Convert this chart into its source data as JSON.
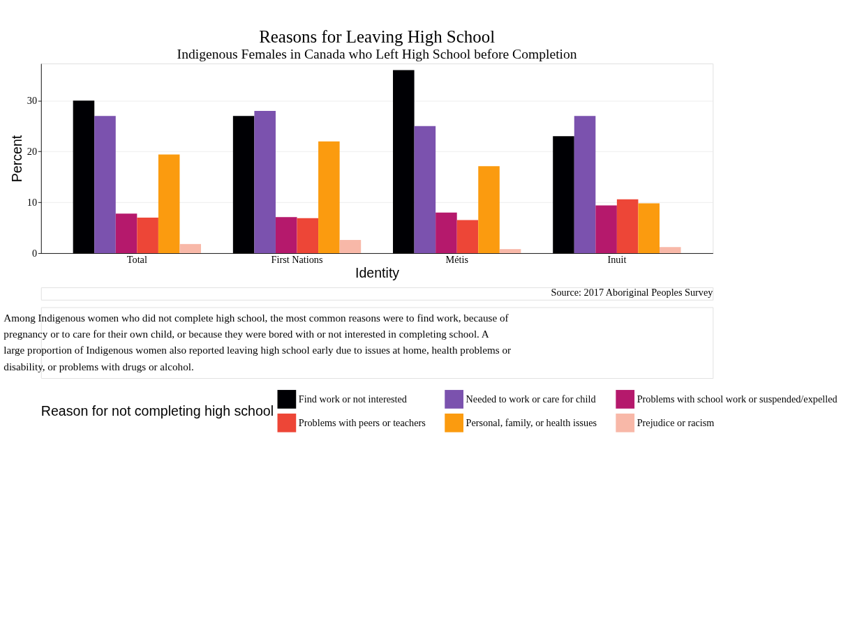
{
  "chart_data": {
    "type": "bar",
    "title": "Reasons for Leaving High School",
    "subtitle": "Indigenous Females in Canada who Left High School before Completion",
    "xlabel": "Identity",
    "ylabel": "Percent",
    "legend_title": "Reason for not completing high school",
    "categories": [
      "Total",
      "First Nations",
      "Métis",
      "Inuit"
    ],
    "series": [
      {
        "name": "Find work or not interested",
        "color": "#000004",
        "values": [
          30,
          27,
          36,
          23
        ]
      },
      {
        "name": "Needed to work or care for child",
        "color": "#7b52ae",
        "values": [
          27,
          28,
          25,
          27
        ]
      },
      {
        "name": "Problems with school work or suspended/expelled",
        "color": "#b5196c",
        "values": [
          7.8,
          7.1,
          8,
          9.4
        ]
      },
      {
        "name": "Problems with peers or teachers",
        "color": "#ed4637",
        "values": [
          7,
          6.9,
          6.5,
          10.6
        ]
      },
      {
        "name": "Personal, family, or health issues",
        "color": "#fb9b0f",
        "values": [
          19.4,
          22,
          17.1,
          9.8
        ]
      },
      {
        "name": "Prejudice or racism",
        "color": "#f8b8a8",
        "values": [
          1.8,
          2.6,
          0.8,
          1.2
        ]
      }
    ],
    "ylim": [
      0,
      37.3
    ],
    "yticks": [
      0,
      10,
      20,
      30
    ],
    "grid": "y",
    "legend": "bottom",
    "annotations": [
      "Source: 2017 Aboriginal Peoples Survey",
      "Among Indigenous women who did not complete high school, the most common reasons were to find work, because of pregnancy or to care for their own child, or because they were bored with or not interested in completing school. A large proportion of Indigenous women also reported leaving high school early due to issues at home, health problems or disability, or problems with drugs or alcohol."
    ]
  }
}
